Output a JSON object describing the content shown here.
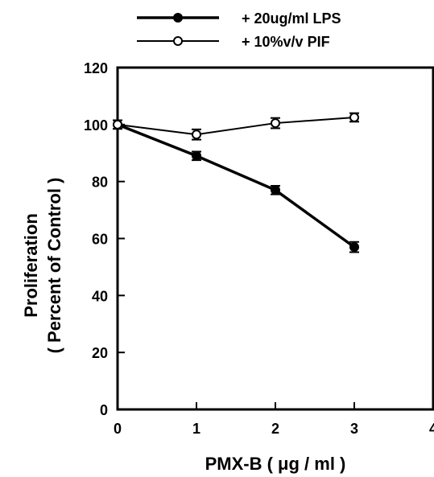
{
  "chart_data": {
    "type": "line",
    "title": "",
    "xlabel": "PMX-B ( μg / ml )",
    "ylabel_lines": [
      "Proliferation",
      "( Percent of Control )"
    ],
    "xlim": [
      0,
      4
    ],
    "ylim": [
      0,
      120
    ],
    "x_ticks": [
      0,
      1,
      2,
      3,
      4
    ],
    "y_ticks": [
      0,
      20,
      40,
      60,
      80,
      100,
      120
    ],
    "grid": false,
    "legend_position": "top-center",
    "series": [
      {
        "name": "+ 20ug/ml LPS",
        "marker": "filled-circle",
        "line_width": "thick",
        "x": [
          0,
          1,
          2,
          3
        ],
        "y": [
          100,
          89,
          77,
          57
        ],
        "error": [
          1.5,
          1.5,
          1.5,
          1.8
        ]
      },
      {
        "name": "+ 10%v/v PIF",
        "marker": "open-circle",
        "line_width": "thin",
        "x": [
          0,
          1,
          2,
          3
        ],
        "y": [
          100,
          96.5,
          100.5,
          102.5
        ],
        "error": [
          1.5,
          1.8,
          1.8,
          1.5
        ]
      }
    ]
  }
}
